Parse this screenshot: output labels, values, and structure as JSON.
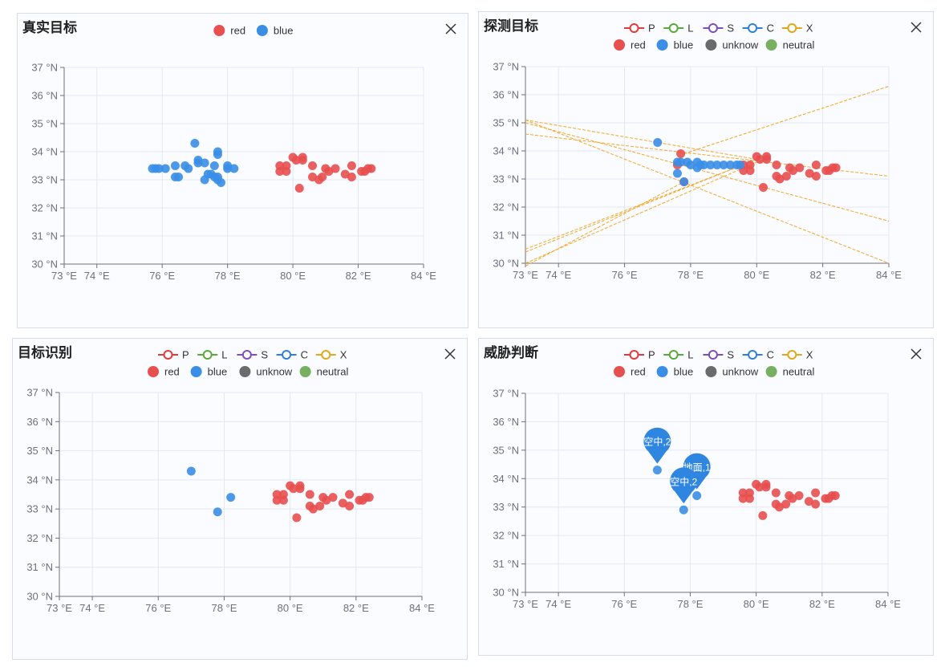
{
  "colors": {
    "red": "#e84f4f",
    "blue": "#3a8ee6",
    "unknow": "#6b6b6b",
    "neutral": "#77b061",
    "P": "#e03a3a",
    "L": "#5aa83c",
    "S": "#7a4fbf",
    "C": "#2f7fd8",
    "X": "#e0a81a",
    "line": "#f5a623",
    "pin": "#2f86e0"
  },
  "legends": {
    "sides": [
      {
        "key": "red",
        "label": "red"
      },
      {
        "key": "blue",
        "label": "blue"
      }
    ],
    "sides4": [
      {
        "key": "red",
        "label": "red"
      },
      {
        "key": "blue",
        "label": "blue"
      },
      {
        "key": "unknow",
        "label": "unknow"
      },
      {
        "key": "neutral",
        "label": "neutral"
      }
    ],
    "types": [
      {
        "key": "P",
        "label": "P"
      },
      {
        "key": "L",
        "label": "L"
      },
      {
        "key": "S",
        "label": "S"
      },
      {
        "key": "C",
        "label": "C"
      },
      {
        "key": "X",
        "label": "X"
      }
    ]
  },
  "axis": {
    "xticks": [
      73,
      74,
      76,
      78,
      80,
      82,
      84
    ],
    "xtick_labels": [
      "73 °E",
      "74 °E",
      "76 °E",
      "78 °E",
      "80 °E",
      "82 °E",
      "84 °E"
    ],
    "yticks": [
      30,
      31,
      32,
      33,
      34,
      35,
      36,
      37
    ],
    "ytick_labels": [
      "30 °N",
      "31 °N",
      "32 °N",
      "33 °N",
      "34 °N",
      "35 °N",
      "36 °N",
      "37 °N"
    ],
    "xlim": [
      73,
      84
    ],
    "ylim": [
      30,
      37
    ]
  },
  "panels": {
    "p1": {
      "title": "真实目标"
    },
    "p2": {
      "title": "探测目标"
    },
    "p3": {
      "title": "目标识别"
    },
    "p4": {
      "title": "威胁判断"
    }
  },
  "chart_data": [
    {
      "type": "scatter",
      "series": [
        {
          "name": "red",
          "points": [
            [
              79.6,
              33.5
            ],
            [
              79.6,
              33.3
            ],
            [
              79.8,
              33.5
            ],
            [
              79.8,
              33.3
            ],
            [
              80.0,
              33.8
            ],
            [
              80.1,
              33.7
            ],
            [
              80.3,
              33.7
            ],
            [
              80.3,
              33.8
            ],
            [
              80.2,
              32.7
            ],
            [
              80.6,
              33.5
            ],
            [
              80.6,
              33.1
            ],
            [
              80.8,
              33.0
            ],
            [
              80.9,
              33.1
            ],
            [
              81.0,
              33.4
            ],
            [
              81.1,
              33.3
            ],
            [
              81.3,
              33.4
            ],
            [
              81.6,
              33.2
            ],
            [
              81.8,
              33.1
            ],
            [
              81.8,
              33.5
            ],
            [
              82.1,
              33.3
            ],
            [
              82.2,
              33.3
            ],
            [
              82.3,
              33.4
            ],
            [
              82.4,
              33.4
            ]
          ]
        },
        {
          "name": "blue",
          "points": [
            [
              75.7,
              33.4
            ],
            [
              75.8,
              33.4
            ],
            [
              75.9,
              33.4
            ],
            [
              76.1,
              33.4
            ],
            [
              76.4,
              33.5
            ],
            [
              76.4,
              33.1
            ],
            [
              76.5,
              33.1
            ],
            [
              76.7,
              33.5
            ],
            [
              76.8,
              33.4
            ],
            [
              77.0,
              34.3
            ],
            [
              77.1,
              33.7
            ],
            [
              77.1,
              33.6
            ],
            [
              77.3,
              33.6
            ],
            [
              77.3,
              33.0
            ],
            [
              77.4,
              33.2
            ],
            [
              77.5,
              33.2
            ],
            [
              77.6,
              33.5
            ],
            [
              77.6,
              33.1
            ],
            [
              77.7,
              33.0
            ],
            [
              77.7,
              34.0
            ],
            [
              77.7,
              33.9
            ],
            [
              77.8,
              32.9
            ],
            [
              77.7,
              33.1
            ],
            [
              78.0,
              33.5
            ],
            [
              78.0,
              33.4
            ],
            [
              78.2,
              33.4
            ]
          ]
        }
      ]
    },
    {
      "type": "scatter",
      "series": [
        {
          "name": "red",
          "points": [
            [
              79.6,
              33.5
            ],
            [
              79.6,
              33.3
            ],
            [
              79.8,
              33.5
            ],
            [
              79.8,
              33.3
            ],
            [
              80.0,
              33.8
            ],
            [
              80.1,
              33.7
            ],
            [
              80.3,
              33.7
            ],
            [
              80.3,
              33.8
            ],
            [
              80.2,
              32.7
            ],
            [
              80.6,
              33.5
            ],
            [
              80.6,
              33.1
            ],
            [
              80.7,
              33.0
            ],
            [
              80.9,
              33.1
            ],
            [
              81.0,
              33.4
            ],
            [
              81.1,
              33.3
            ],
            [
              81.3,
              33.4
            ],
            [
              81.6,
              33.2
            ],
            [
              81.8,
              33.1
            ],
            [
              81.8,
              33.5
            ],
            [
              82.1,
              33.3
            ],
            [
              82.2,
              33.3
            ],
            [
              82.3,
              33.4
            ],
            [
              82.4,
              33.4
            ],
            [
              77.7,
              33.9
            ],
            [
              77.6,
              33.5
            ],
            [
              77.8,
              32.9
            ]
          ]
        },
        {
          "name": "blue",
          "points": [
            [
              77.0,
              34.3
            ],
            [
              77.6,
              33.6
            ],
            [
              77.7,
              33.6
            ],
            [
              77.9,
              33.6
            ],
            [
              78.0,
              33.5
            ],
            [
              78.2,
              33.6
            ],
            [
              78.3,
              33.5
            ],
            [
              78.4,
              33.5
            ],
            [
              78.6,
              33.5
            ],
            [
              78.8,
              33.5
            ],
            [
              79.0,
              33.5
            ],
            [
              79.2,
              33.5
            ],
            [
              79.4,
              33.5
            ],
            [
              79.5,
              33.5
            ],
            [
              77.6,
              33.2
            ],
            [
              77.8,
              32.9
            ],
            [
              78.2,
              33.4
            ]
          ]
        }
      ],
      "lines": [
        [
          [
            73.0,
            35.1
          ],
          [
            80.0,
            33.7
          ]
        ],
        [
          [
            73.0,
            35.1
          ],
          [
            84.0,
            30.0
          ]
        ],
        [
          [
            73.0,
            35.0
          ],
          [
            84.0,
            31.5
          ]
        ],
        [
          [
            73.0,
            34.6
          ],
          [
            84.0,
            33.1
          ]
        ],
        [
          [
            73.0,
            30.0
          ],
          [
            80.0,
            33.6
          ]
        ],
        [
          [
            73.0,
            30.4
          ],
          [
            80.0,
            33.7
          ]
        ],
        [
          [
            73.0,
            30.5
          ],
          [
            79.8,
            33.6
          ]
        ],
        [
          [
            73.0,
            29.9
          ],
          [
            77.8,
            32.9
          ]
        ],
        [
          [
            77.8,
            33.9
          ],
          [
            84.0,
            36.3
          ]
        ]
      ]
    },
    {
      "type": "scatter",
      "series": [
        {
          "name": "red",
          "points": [
            [
              79.6,
              33.5
            ],
            [
              79.6,
              33.3
            ],
            [
              79.8,
              33.5
            ],
            [
              79.8,
              33.3
            ],
            [
              80.0,
              33.8
            ],
            [
              80.1,
              33.7
            ],
            [
              80.3,
              33.7
            ],
            [
              80.3,
              33.8
            ],
            [
              80.2,
              32.7
            ],
            [
              80.6,
              33.5
            ],
            [
              80.6,
              33.1
            ],
            [
              80.7,
              33.0
            ],
            [
              80.9,
              33.1
            ],
            [
              81.0,
              33.4
            ],
            [
              81.1,
              33.3
            ],
            [
              81.3,
              33.4
            ],
            [
              81.6,
              33.2
            ],
            [
              81.8,
              33.1
            ],
            [
              81.8,
              33.5
            ],
            [
              82.1,
              33.3
            ],
            [
              82.2,
              33.3
            ],
            [
              82.3,
              33.4
            ],
            [
              82.4,
              33.4
            ]
          ]
        },
        {
          "name": "blue",
          "points": [
            [
              77.0,
              34.3
            ],
            [
              77.8,
              32.9
            ],
            [
              78.2,
              33.4
            ]
          ]
        }
      ]
    },
    {
      "type": "scatter",
      "series": [
        {
          "name": "red",
          "points": [
            [
              79.6,
              33.5
            ],
            [
              79.6,
              33.3
            ],
            [
              79.8,
              33.5
            ],
            [
              79.8,
              33.3
            ],
            [
              80.0,
              33.8
            ],
            [
              80.1,
              33.7
            ],
            [
              80.3,
              33.7
            ],
            [
              80.3,
              33.8
            ],
            [
              80.2,
              32.7
            ],
            [
              80.6,
              33.5
            ],
            [
              80.6,
              33.1
            ],
            [
              80.7,
              33.0
            ],
            [
              80.9,
              33.1
            ],
            [
              81.0,
              33.4
            ],
            [
              81.1,
              33.3
            ],
            [
              81.3,
              33.4
            ],
            [
              81.6,
              33.2
            ],
            [
              81.8,
              33.1
            ],
            [
              81.8,
              33.5
            ],
            [
              82.1,
              33.3
            ],
            [
              82.2,
              33.3
            ],
            [
              82.3,
              33.4
            ],
            [
              82.4,
              33.4
            ]
          ]
        },
        {
          "name": "blue",
          "points": [
            [
              77.0,
              34.3
            ],
            [
              77.8,
              32.9
            ],
            [
              78.2,
              33.4
            ]
          ]
        }
      ],
      "pins": [
        {
          "x": 77.0,
          "y": 34.3,
          "label": "空中,2"
        },
        {
          "x": 78.2,
          "y": 33.4,
          "label": "地面,1"
        },
        {
          "x": 77.8,
          "y": 32.9,
          "label": "空中,2"
        }
      ]
    }
  ]
}
